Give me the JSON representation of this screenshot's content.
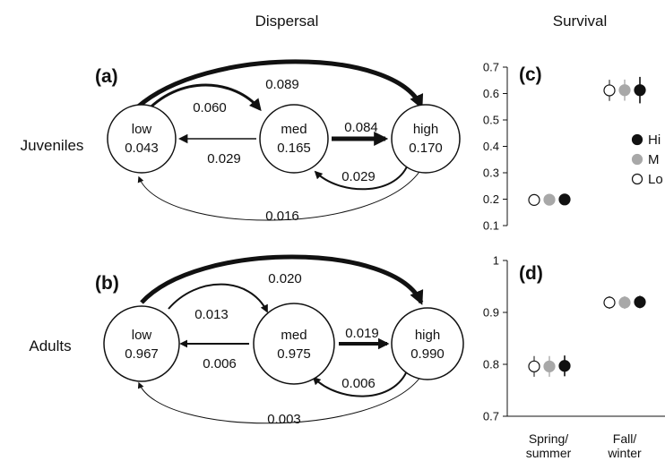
{
  "headers": {
    "dispersal": "Dispersal",
    "survival": "Survival"
  },
  "row_labels": {
    "juveniles": "Juveniles",
    "adults": "Adults"
  },
  "panels": {
    "a": {
      "label": "(a)",
      "nodes": {
        "low": {
          "name": "low",
          "value": "0.043"
        },
        "med": {
          "name": "med",
          "value": "0.165"
        },
        "high": {
          "name": "high",
          "value": "0.170"
        }
      },
      "arrows": {
        "low_high": "0.089",
        "low_med": "0.060",
        "med_high": "0.084",
        "med_low": "0.029",
        "high_med": "0.029",
        "high_low": "0.016"
      }
    },
    "b": {
      "label": "(b)",
      "nodes": {
        "low": {
          "name": "low",
          "value": "0.967"
        },
        "med": {
          "name": "med",
          "value": "0.975"
        },
        "high": {
          "name": "high",
          "value": "0.990"
        }
      },
      "arrows": {
        "low_high": "0.020",
        "low_med": "0.013",
        "med_high": "0.019",
        "med_low": "0.006",
        "high_med": "0.006",
        "high_low": "0.003"
      }
    }
  },
  "colors": {
    "high": "#111111",
    "med": "#a8a8a8",
    "low": "#ffffff",
    "outline": "#111111"
  },
  "chart_data": [
    {
      "panel": "(c)",
      "type": "scatter",
      "ylim": [
        0.1,
        0.7
      ],
      "yticks": [
        "0.1",
        "0.2",
        "0.3",
        "0.4",
        "0.5",
        "0.6",
        "0.7"
      ],
      "categories": [
        "Spring/ summer",
        "Fall/ winter"
      ],
      "legend": {
        "placement": "right",
        "labels": [
          "Hi",
          "M",
          "Lo"
        ]
      },
      "series": [
        {
          "name": "Low",
          "values": [
            0.197,
            0.612
          ],
          "err": [
            0.02,
            0.04
          ]
        },
        {
          "name": "Med",
          "values": [
            0.198,
            0.613
          ],
          "err": [
            0.02,
            0.04
          ]
        },
        {
          "name": "High",
          "values": [
            0.199,
            0.613
          ],
          "err": [
            0.02,
            0.05
          ]
        }
      ]
    },
    {
      "panel": "(d)",
      "type": "scatter",
      "ylim": [
        0.7,
        1.0
      ],
      "yticks": [
        "0.7",
        "0.8",
        "0.9",
        "1"
      ],
      "categories": [
        "Spring/ summer",
        "Fall/ winter"
      ],
      "series": [
        {
          "name": "Low",
          "values": [
            0.796,
            0.919
          ],
          "err": [
            0.02,
            0.012
          ]
        },
        {
          "name": "Med",
          "values": [
            0.796,
            0.919
          ],
          "err": [
            0.02,
            0.012
          ]
        },
        {
          "name": "High",
          "values": [
            0.797,
            0.92
          ],
          "err": [
            0.02,
            0.012
          ]
        }
      ]
    }
  ],
  "x_axis": {
    "cat1": [
      "Spring/",
      "summer"
    ],
    "cat2": [
      "Fall/",
      "winter"
    ]
  }
}
